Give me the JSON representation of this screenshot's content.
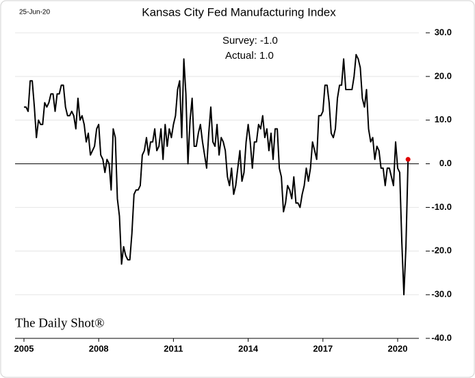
{
  "chart_data": {
    "type": "line",
    "title": "Kansas City Fed Manufacturing Index",
    "date": "25-Jun-20",
    "annotations": [
      "Survey: -1.0",
      "Actual:  1.0"
    ],
    "source": "The Daily Shot®",
    "categories": [
      "2005",
      null,
      null,
      null,
      null,
      null,
      null,
      null,
      null,
      null,
      null,
      null,
      null,
      null,
      null,
      null,
      null,
      null,
      null,
      null,
      null,
      null,
      null,
      null,
      null,
      null,
      null,
      null,
      null,
      null,
      null,
      null,
      null,
      null,
      null,
      null,
      "2008",
      null,
      null,
      null,
      null,
      null,
      null,
      null,
      null,
      null,
      null,
      null,
      null,
      null,
      null,
      null,
      null,
      null,
      null,
      null,
      null,
      null,
      null,
      null,
      null,
      null,
      null,
      null,
      null,
      null,
      null,
      null,
      null,
      null,
      null,
      null,
      "2011",
      null,
      null,
      null,
      null,
      null,
      null,
      null,
      null,
      null,
      null,
      null,
      null,
      null,
      null,
      null,
      null,
      null,
      null,
      null,
      null,
      null,
      null,
      null,
      null,
      null,
      null,
      null,
      null,
      null,
      null,
      null,
      null,
      null,
      null,
      null,
      "2014",
      null,
      null,
      null,
      null,
      null,
      null,
      null,
      null,
      null,
      null,
      null,
      null,
      null,
      null,
      null,
      null,
      null,
      null,
      null,
      null,
      null,
      null,
      null,
      null,
      null,
      null,
      null,
      null,
      null,
      null,
      null,
      null,
      null,
      null,
      null,
      "2017",
      null,
      null,
      null,
      null,
      null,
      null,
      null,
      null,
      null,
      null,
      null,
      null,
      null,
      null,
      null,
      null,
      null,
      null,
      null,
      null,
      null,
      null,
      null,
      null,
      null,
      null,
      null,
      null,
      null,
      null,
      null,
      null,
      null,
      null,
      null,
      "2020",
      null,
      null,
      null,
      null,
      null
    ],
    "values": [
      13,
      13,
      12,
      19,
      19,
      13,
      6,
      10,
      9,
      9,
      14,
      13,
      14,
      16,
      16,
      12,
      16,
      16,
      18,
      18,
      13,
      11,
      11,
      12,
      11,
      8,
      15,
      10,
      11,
      9,
      5,
      7,
      2,
      3,
      4,
      8,
      9,
      2,
      1,
      -2,
      1,
      0,
      -6,
      8,
      6,
      -8,
      -12,
      -23,
      -19,
      -21,
      -22,
      -22,
      -16,
      -7,
      -6,
      -6,
      -5,
      2,
      3,
      6,
      2,
      5,
      5,
      8,
      3,
      4,
      8,
      1,
      9,
      4,
      8,
      6,
      9,
      11,
      17,
      19,
      6,
      24,
      16,
      0,
      10,
      15,
      4,
      4,
      7,
      9,
      5,
      2,
      -1,
      7,
      13,
      5,
      4,
      9,
      2,
      6,
      5,
      3,
      -3,
      -5,
      -1,
      -7,
      -5,
      -1,
      3,
      -4,
      -2,
      5,
      9,
      5,
      -1,
      5,
      5,
      9,
      8,
      11,
      6,
      8,
      3,
      7,
      1,
      8,
      8,
      -1,
      -3,
      -11,
      -9,
      -5,
      -6,
      -8,
      -3,
      -9,
      -9,
      -10,
      -7,
      -5,
      -1,
      -4,
      -1,
      5,
      3,
      1,
      11,
      11,
      12,
      18,
      18,
      14,
      7,
      6,
      8,
      15,
      18,
      18,
      24,
      17,
      17,
      17,
      17,
      20,
      25,
      24,
      22,
      15,
      13,
      17,
      8,
      5,
      6,
      1,
      4,
      3,
      -1,
      -1,
      -5,
      -1,
      -1,
      -3,
      -5,
      5,
      -1,
      -2,
      -18,
      -30,
      -19,
      1
    ],
    "color": "#000000",
    "highlight_color": "#e00000",
    "ylim": [
      -40,
      30
    ],
    "yticks": [
      {
        "value": -40,
        "label": "-40.0"
      },
      {
        "value": -30,
        "label": "-30.0"
      },
      {
        "value": -20,
        "label": "-20.0"
      },
      {
        "value": -10,
        "label": "-10.0"
      },
      {
        "value": 0,
        "label": "0.0"
      },
      {
        "value": 10,
        "label": "10.0"
      },
      {
        "value": 20,
        "label": "20.0"
      },
      {
        "value": 30,
        "label": "30.0"
      }
    ],
    "grid": true
  }
}
